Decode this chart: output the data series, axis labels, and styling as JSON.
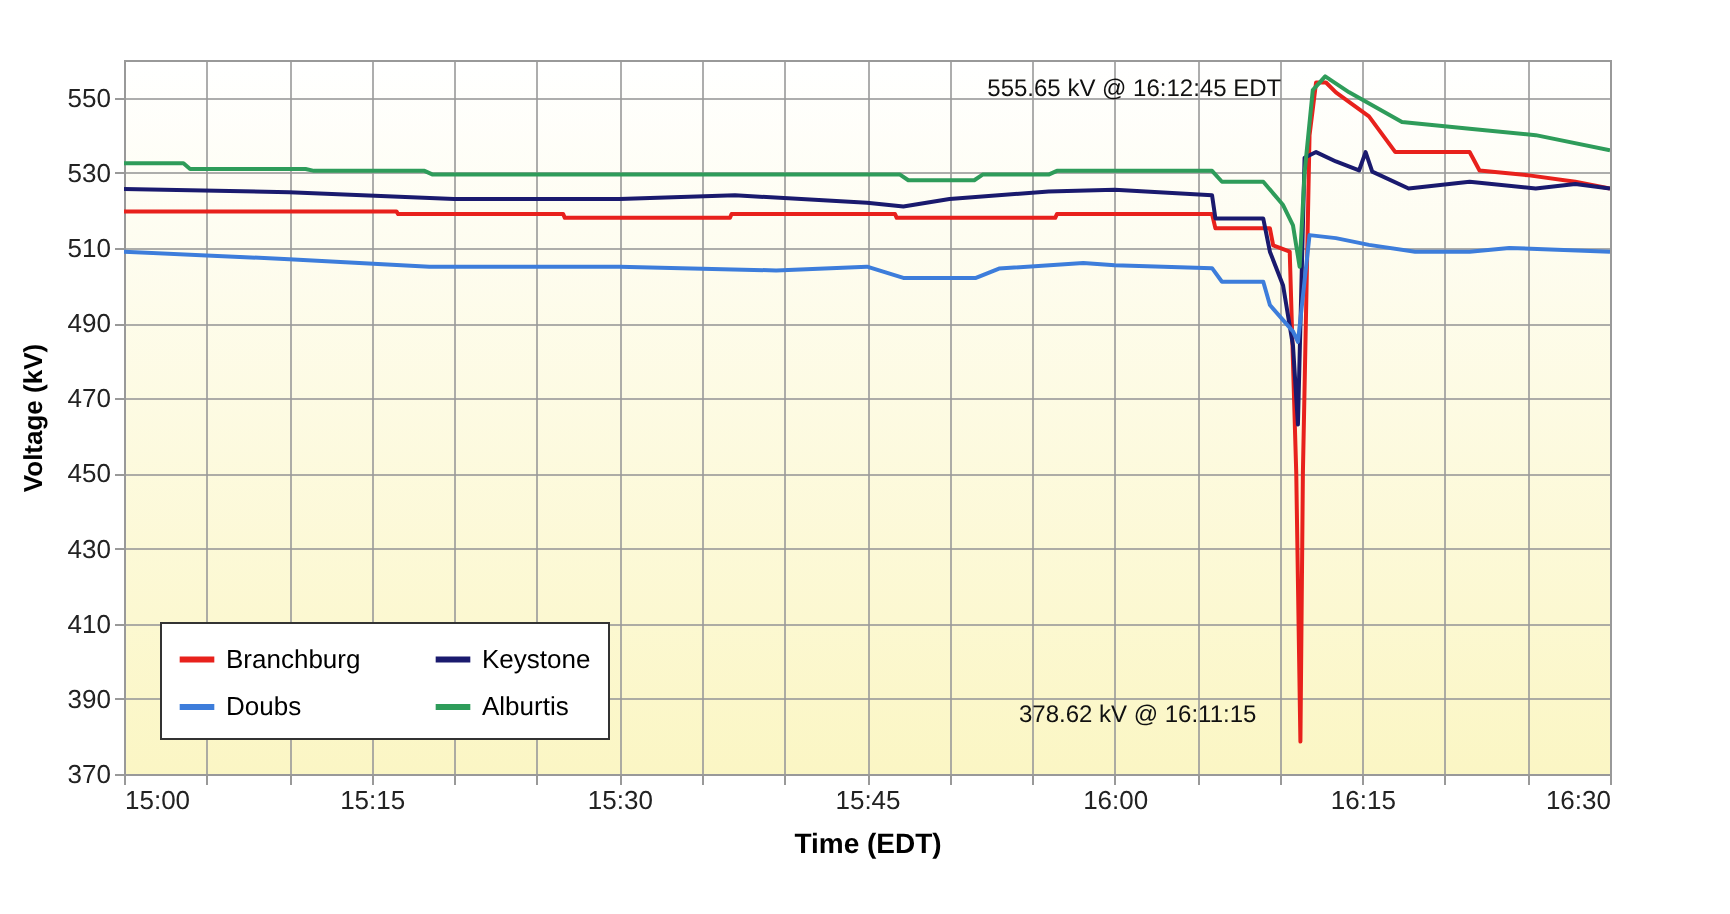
{
  "chart_data": {
    "type": "line",
    "xlabel": "Time (EDT)",
    "ylabel": "Voltage (kV)",
    "xlim": [
      15,
      16.5
    ],
    "ylim": [
      370,
      560
    ],
    "xticks": [
      {
        "value": 15,
        "label": "15:00"
      },
      {
        "value": 15.0833,
        "label": null
      },
      {
        "value": 15.1667,
        "label": null
      },
      {
        "value": 15.25,
        "label": "15:15"
      },
      {
        "value": 15.3333,
        "label": null
      },
      {
        "value": 15.4167,
        "label": null
      },
      {
        "value": 15.5,
        "label": "15:30"
      },
      {
        "value": 15.5833,
        "label": null
      },
      {
        "value": 15.6667,
        "label": null
      },
      {
        "value": 15.75,
        "label": "15:45"
      },
      {
        "value": 15.8333,
        "label": null
      },
      {
        "value": 15.9167,
        "label": null
      },
      {
        "value": 16,
        "label": "16:00"
      },
      {
        "value": 16.0833,
        "label": null
      },
      {
        "value": 16.1667,
        "label": null
      },
      {
        "value": 16.25,
        "label": "16:15"
      },
      {
        "value": 16.3333,
        "label": null
      },
      {
        "value": 16.4167,
        "label": null
      },
      {
        "value": 16.5,
        "label": "16:30"
      }
    ],
    "yticks": [
      370,
      390,
      410,
      430,
      450,
      470,
      490,
      510,
      530,
      550
    ],
    "grid": true,
    "legend": "bottom left",
    "marker": "none",
    "line_style": "solid",
    "series": [
      {
        "name": "Branchburg",
        "color": "#e8211c",
        "x": [
          15,
          15.275,
          15.2767,
          15.4433,
          15.445,
          15.6117,
          15.6133,
          15.7783,
          15.78,
          15.94,
          15.9417,
          16.0983,
          16.1017,
          16.1567,
          16.16,
          16.1767,
          16.1833,
          16.1875,
          16.19,
          16.1967,
          16.2033,
          16.2133,
          16.2233,
          16.2567,
          16.2833,
          16.3583,
          16.3683,
          16.4183,
          16.465,
          16.5
        ],
        "values": [
          519.7,
          519.7,
          519,
          519,
          518,
          518,
          519,
          519,
          518,
          518,
          519,
          519,
          515.2,
          515.2,
          510.7,
          509,
          450,
          378.62,
          450,
          540,
          554,
          554,
          551.4,
          545,
          535.5,
          535.5,
          530.6,
          529.3,
          527.6,
          525.8
        ]
      },
      {
        "name": "Keystone",
        "color": "#1a1a6e",
        "x": [
          15,
          15.1667,
          15.3333,
          15.5,
          15.6167,
          15.75,
          15.7867,
          15.8333,
          15.9333,
          16,
          16.0983,
          16.1017,
          16.15,
          16.1567,
          16.17,
          16.18,
          16.185,
          16.1917,
          16.2033,
          16.2233,
          16.2467,
          16.2533,
          16.26,
          16.2967,
          16.3583,
          16.425,
          16.465,
          16.5
        ],
        "values": [
          525.7,
          524.8,
          523,
          523,
          524,
          522,
          521,
          523,
          525,
          525.5,
          524,
          517.8,
          517.8,
          509,
          500,
          484,
          463,
          534,
          535.5,
          533,
          530.6,
          535.5,
          530.3,
          525.8,
          527.6,
          525.8,
          527,
          525.8
        ]
      },
      {
        "name": "Doubs",
        "color": "#3d7ddb",
        "x": [
          15,
          15.0833,
          15.1667,
          15.3083,
          15.5,
          15.6583,
          15.75,
          15.7867,
          15.86,
          15.8833,
          15.9683,
          16,
          16.0983,
          16.1083,
          16.15,
          16.1567,
          16.18,
          16.185,
          16.1967,
          16.2233,
          16.2567,
          16.3033,
          16.3583,
          16.3983,
          16.5
        ],
        "values": [
          509,
          508,
          507,
          505,
          505,
          504,
          505,
          502,
          502,
          504.5,
          506,
          505.4,
          504.6,
          501,
          501,
          494.8,
          487.8,
          485,
          513.4,
          512.6,
          510.8,
          509,
          509,
          510,
          509
        ]
      },
      {
        "name": "Alburtis",
        "color": "#2e9c5a",
        "x": [
          15,
          15.06,
          15.0667,
          15.1833,
          15.1917,
          15.3033,
          15.3117,
          15.7833,
          15.7917,
          15.8583,
          15.8667,
          15.9333,
          15.9417,
          16.0983,
          16.1083,
          16.15,
          16.17,
          16.18,
          16.1867,
          16.1917,
          16.2,
          16.2125,
          16.2367,
          16.29,
          16.3583,
          16.425,
          16.5
        ],
        "values": [
          532.5,
          532.5,
          531,
          531,
          530.5,
          530.5,
          529.5,
          529.5,
          528,
          528,
          529.5,
          529.5,
          530.5,
          530.5,
          527.6,
          527.6,
          521.4,
          516,
          505,
          530,
          552,
          555.65,
          551.4,
          543.5,
          541.7,
          540,
          536
        ]
      }
    ],
    "annotations": [
      {
        "text": "555.65 kV @ 16:12:45 EDT",
        "x": 16.2125,
        "y": 555.65
      },
      {
        "text": "378.62 kV @ 16:11:15",
        "x": 16.1875,
        "y": 378.62
      }
    ]
  }
}
